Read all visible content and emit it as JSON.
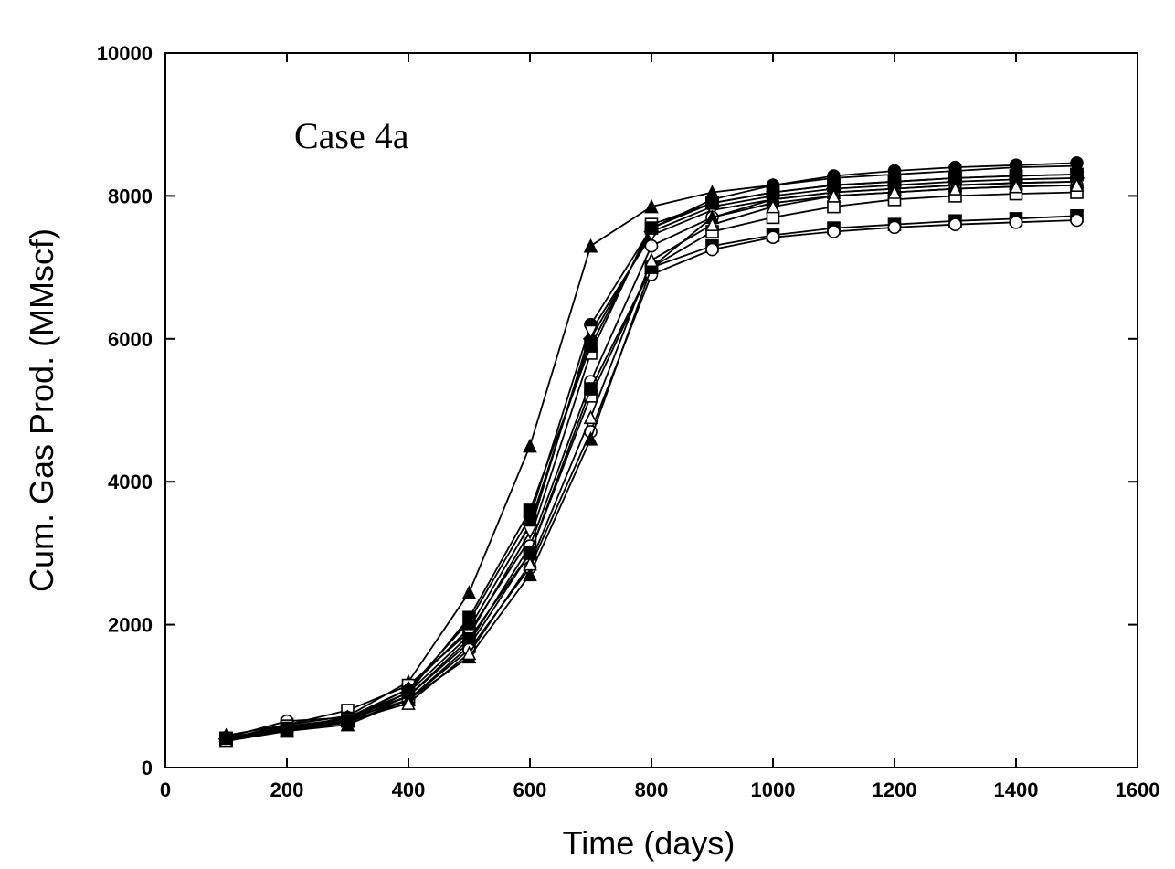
{
  "chart_data": {
    "type": "line",
    "title": "",
    "annotation": "Case 4a",
    "xlabel": "Time (days)",
    "ylabel": "Cum. Gas Prod. (MMscf)",
    "xlim": [
      0,
      1600
    ],
    "ylim": [
      0,
      10000
    ],
    "xticks": [
      0,
      200,
      400,
      600,
      800,
      1000,
      1200,
      1400,
      1600
    ],
    "yticks": [
      0,
      2000,
      4000,
      6000,
      8000,
      10000
    ],
    "grid": false,
    "legend": "none",
    "x": [
      100,
      200,
      300,
      400,
      500,
      600,
      700,
      800,
      900,
      1000,
      1100,
      1200,
      1300,
      1400,
      1500
    ],
    "series": [
      {
        "marker": "triangle-filled",
        "values": [
          450,
          600,
          720,
          1200,
          2450,
          4500,
          7300,
          7850,
          8050,
          8150,
          8250,
          8300,
          8350,
          8400,
          8420
        ]
      },
      {
        "marker": "circle-filled",
        "values": [
          420,
          560,
          680,
          1100,
          2050,
          3500,
          6200,
          7550,
          7950,
          8150,
          8280,
          8350,
          8400,
          8430,
          8460
        ]
      },
      {
        "marker": "square-open",
        "values": [
          400,
          600,
          800,
          1150,
          1900,
          3200,
          5800,
          7600,
          7900,
          8050,
          8150,
          8200,
          8250,
          8280,
          8300
        ]
      },
      {
        "marker": "diamond-filled",
        "values": [
          400,
          550,
          700,
          1100,
          1950,
          3400,
          6000,
          7500,
          7850,
          8000,
          8100,
          8150,
          8200,
          8230,
          8250
        ]
      },
      {
        "marker": "triangle-down-open",
        "values": [
          410,
          560,
          690,
          1050,
          1850,
          3300,
          6100,
          7450,
          7800,
          7950,
          8050,
          8100,
          8150,
          8180,
          8200
        ]
      },
      {
        "marker": "circle-open",
        "values": [
          420,
          650,
          700,
          1000,
          1750,
          3100,
          5400,
          7300,
          7700,
          7900,
          8000,
          8050,
          8100,
          8130,
          8150
        ]
      },
      {
        "marker": "square-open",
        "values": [
          390,
          580,
          680,
          950,
          1700,
          3000,
          5200,
          7000,
          7500,
          7700,
          7850,
          7950,
          8000,
          8030,
          8050
        ]
      },
      {
        "marker": "square-filled",
        "values": [
          400,
          550,
          650,
          1000,
          1800,
          3000,
          5300,
          7000,
          7300,
          7450,
          7550,
          7600,
          7650,
          7680,
          7720
        ]
      },
      {
        "marker": "circle-open",
        "values": [
          380,
          520,
          630,
          950,
          1650,
          2800,
          4700,
          6900,
          7250,
          7420,
          7500,
          7560,
          7600,
          7630,
          7660
        ]
      },
      {
        "marker": "triangle-filled",
        "values": [
          370,
          510,
          600,
          950,
          1550,
          2700,
          4600,
          7000,
          7700,
          7950,
          8050,
          8100,
          8150,
          8180,
          8200
        ]
      },
      {
        "marker": "triangle-open",
        "values": [
          380,
          530,
          650,
          900,
          1600,
          2850,
          4900,
          7100,
          7600,
          7850,
          8000,
          8050,
          8100,
          8130,
          8150
        ]
      },
      {
        "marker": "square-filled",
        "values": [
          410,
          540,
          660,
          1050,
          2100,
          3600,
          5900,
          7550,
          7900,
          8050,
          8150,
          8200,
          8250,
          8280,
          8300
        ]
      }
    ]
  }
}
